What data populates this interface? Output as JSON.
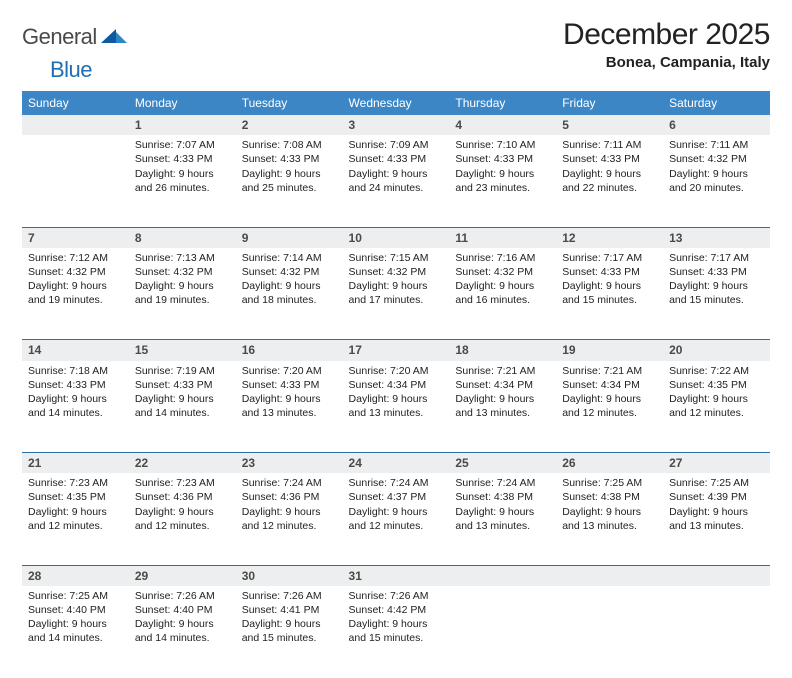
{
  "logo": {
    "text1": "General",
    "text2": "Blue"
  },
  "title": "December 2025",
  "location": "Bonea, Campania, Italy",
  "colors": {
    "header_bg": "#3d86c6",
    "header_text": "#ffffff",
    "row_divider": "#2f6da5",
    "daynum_bg": "#eceeef",
    "logo_gray": "#4a4a4a",
    "logo_blue": "#1f6fb2"
  },
  "weekdays": [
    "Sunday",
    "Monday",
    "Tuesday",
    "Wednesday",
    "Thursday",
    "Friday",
    "Saturday"
  ],
  "weeks": [
    {
      "nums": [
        "",
        "1",
        "2",
        "3",
        "4",
        "5",
        "6"
      ],
      "cells": [
        null,
        {
          "sunrise": "7:07 AM",
          "sunset": "4:33 PM",
          "daylight": "9 hours and 26 minutes."
        },
        {
          "sunrise": "7:08 AM",
          "sunset": "4:33 PM",
          "daylight": "9 hours and 25 minutes."
        },
        {
          "sunrise": "7:09 AM",
          "sunset": "4:33 PM",
          "daylight": "9 hours and 24 minutes."
        },
        {
          "sunrise": "7:10 AM",
          "sunset": "4:33 PM",
          "daylight": "9 hours and 23 minutes."
        },
        {
          "sunrise": "7:11 AM",
          "sunset": "4:33 PM",
          "daylight": "9 hours and 22 minutes."
        },
        {
          "sunrise": "7:11 AM",
          "sunset": "4:32 PM",
          "daylight": "9 hours and 20 minutes."
        }
      ]
    },
    {
      "nums": [
        "7",
        "8",
        "9",
        "10",
        "11",
        "12",
        "13"
      ],
      "cells": [
        {
          "sunrise": "7:12 AM",
          "sunset": "4:32 PM",
          "daylight": "9 hours and 19 minutes."
        },
        {
          "sunrise": "7:13 AM",
          "sunset": "4:32 PM",
          "daylight": "9 hours and 19 minutes."
        },
        {
          "sunrise": "7:14 AM",
          "sunset": "4:32 PM",
          "daylight": "9 hours and 18 minutes."
        },
        {
          "sunrise": "7:15 AM",
          "sunset": "4:32 PM",
          "daylight": "9 hours and 17 minutes."
        },
        {
          "sunrise": "7:16 AM",
          "sunset": "4:32 PM",
          "daylight": "9 hours and 16 minutes."
        },
        {
          "sunrise": "7:17 AM",
          "sunset": "4:33 PM",
          "daylight": "9 hours and 15 minutes."
        },
        {
          "sunrise": "7:17 AM",
          "sunset": "4:33 PM",
          "daylight": "9 hours and 15 minutes."
        }
      ]
    },
    {
      "nums": [
        "14",
        "15",
        "16",
        "17",
        "18",
        "19",
        "20"
      ],
      "cells": [
        {
          "sunrise": "7:18 AM",
          "sunset": "4:33 PM",
          "daylight": "9 hours and 14 minutes."
        },
        {
          "sunrise": "7:19 AM",
          "sunset": "4:33 PM",
          "daylight": "9 hours and 14 minutes."
        },
        {
          "sunrise": "7:20 AM",
          "sunset": "4:33 PM",
          "daylight": "9 hours and 13 minutes."
        },
        {
          "sunrise": "7:20 AM",
          "sunset": "4:34 PM",
          "daylight": "9 hours and 13 minutes."
        },
        {
          "sunrise": "7:21 AM",
          "sunset": "4:34 PM",
          "daylight": "9 hours and 13 minutes."
        },
        {
          "sunrise": "7:21 AM",
          "sunset": "4:34 PM",
          "daylight": "9 hours and 12 minutes."
        },
        {
          "sunrise": "7:22 AM",
          "sunset": "4:35 PM",
          "daylight": "9 hours and 12 minutes."
        }
      ]
    },
    {
      "nums": [
        "21",
        "22",
        "23",
        "24",
        "25",
        "26",
        "27"
      ],
      "cells": [
        {
          "sunrise": "7:23 AM",
          "sunset": "4:35 PM",
          "daylight": "9 hours and 12 minutes."
        },
        {
          "sunrise": "7:23 AM",
          "sunset": "4:36 PM",
          "daylight": "9 hours and 12 minutes."
        },
        {
          "sunrise": "7:24 AM",
          "sunset": "4:36 PM",
          "daylight": "9 hours and 12 minutes."
        },
        {
          "sunrise": "7:24 AM",
          "sunset": "4:37 PM",
          "daylight": "9 hours and 12 minutes."
        },
        {
          "sunrise": "7:24 AM",
          "sunset": "4:38 PM",
          "daylight": "9 hours and 13 minutes."
        },
        {
          "sunrise": "7:25 AM",
          "sunset": "4:38 PM",
          "daylight": "9 hours and 13 minutes."
        },
        {
          "sunrise": "7:25 AM",
          "sunset": "4:39 PM",
          "daylight": "9 hours and 13 minutes."
        }
      ]
    },
    {
      "nums": [
        "28",
        "29",
        "30",
        "31",
        "",
        "",
        ""
      ],
      "cells": [
        {
          "sunrise": "7:25 AM",
          "sunset": "4:40 PM",
          "daylight": "9 hours and 14 minutes."
        },
        {
          "sunrise": "7:26 AM",
          "sunset": "4:40 PM",
          "daylight": "9 hours and 14 minutes."
        },
        {
          "sunrise": "7:26 AM",
          "sunset": "4:41 PM",
          "daylight": "9 hours and 15 minutes."
        },
        {
          "sunrise": "7:26 AM",
          "sunset": "4:42 PM",
          "daylight": "9 hours and 15 minutes."
        },
        null,
        null,
        null
      ]
    }
  ],
  "labels": {
    "sunrise": "Sunrise:",
    "sunset": "Sunset:",
    "daylight": "Daylight:"
  }
}
